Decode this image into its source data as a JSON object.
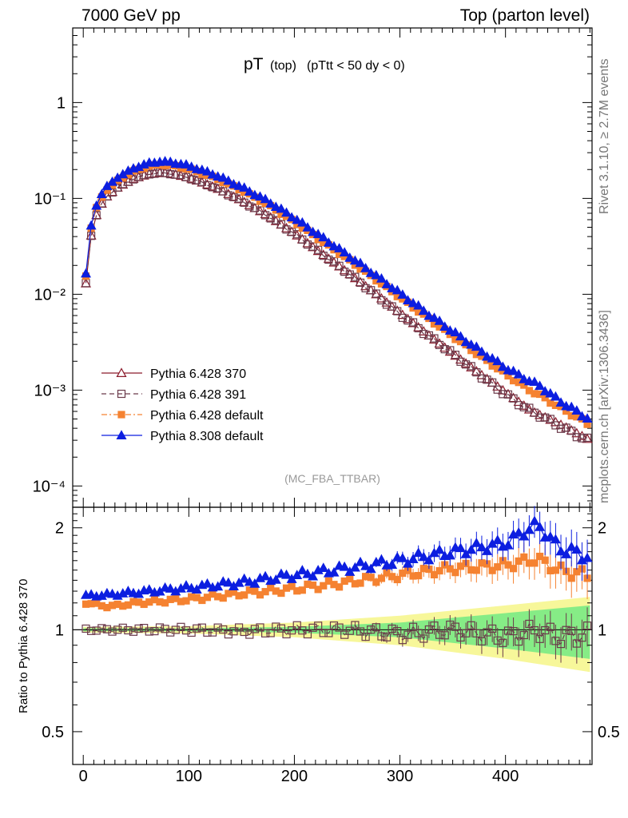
{
  "header": {
    "left": "7000 GeV pp",
    "right": "Top (parton level)"
  },
  "side_labels": {
    "rivet": "Rivet 3.1.10, ≥ 2.7M events",
    "mcplots": "mcplots.cern.ch [arXiv:1306.3436]"
  },
  "chart_data": {
    "type": "scatter",
    "title_main": "pT",
    "title_sub1": "(top)",
    "title_sub2": "(pTtt < 50 dy < 0)",
    "watermark": "(MC_FBA_TTBAR)",
    "ratio_ylabel": "Ratio to Pythia 6.428 370",
    "log_y": true,
    "xlim": [
      -10,
      482
    ],
    "ylim": [
      6e-05,
      6
    ],
    "ratio_ylim": [
      0.4,
      2.3
    ],
    "x_ticks": [
      "0",
      "100",
      "200",
      "300",
      "400"
    ],
    "y_ticks": [
      "10⁻⁴",
      "10⁻³",
      "10⁻²",
      "10⁻¹",
      "1"
    ],
    "ratio_ticks": [
      "0.5",
      "1",
      "2"
    ],
    "legend_position": "lower-left",
    "colors": {
      "p370": "#8b1a2b",
      "p391": "#6b3b4b",
      "p6def": "#f58231",
      "p8def": "#0c1ee0",
      "band_inner": "#86ec86",
      "band_outer": "#f7f79a"
    },
    "series": [
      {
        "name": "Pythia 6.428 370",
        "key": "p370",
        "marker": "triangle-open",
        "line": "solid"
      },
      {
        "name": "Pythia 6.428 391",
        "key": "p391",
        "marker": "square-open",
        "line": "dashed"
      },
      {
        "name": "Pythia 6.428 default",
        "key": "p6def",
        "marker": "square-filled",
        "line": "dashdot"
      },
      {
        "name": "Pythia 8.308 default",
        "key": "p8def",
        "marker": "triangle-filled",
        "line": "solid"
      }
    ],
    "x_start": 2.5,
    "x_step": 5,
    "n_points": 96,
    "reference_shape": {
      "description": "Pythia 6.428 370 values (log-linear interpolation between anchors)",
      "anchors_x": [
        2.5,
        7.5,
        12.5,
        17.5,
        22.5,
        32.5,
        47.5,
        62.5,
        72.5,
        82.5,
        100,
        125,
        150,
        175,
        200,
        225,
        250,
        275,
        300,
        325,
        350,
        375,
        400,
        425,
        450,
        477.5
      ],
      "anchors_y": [
        0.013,
        0.041,
        0.067,
        0.088,
        0.105,
        0.13,
        0.16,
        0.18,
        0.185,
        0.182,
        0.165,
        0.13,
        0.095,
        0.066,
        0.043,
        0.027,
        0.017,
        0.0105,
        0.0064,
        0.0039,
        0.0024,
        0.0015,
        0.00095,
        0.0006,
        0.00045,
        0.00031
      ]
    },
    "ratio_anchors": {
      "x": [
        2.5,
        25,
        50,
        100,
        150,
        200,
        250,
        300,
        350,
        400,
        430,
        450,
        477.5
      ],
      "p391": [
        1.0,
        1.0,
        1.0,
        1.0,
        0.99,
        1.0,
        1.0,
        0.97,
        1.0,
        0.95,
        1.0,
        0.95,
        0.97
      ],
      "p6def": [
        1.2,
        1.17,
        1.2,
        1.23,
        1.28,
        1.32,
        1.38,
        1.45,
        1.52,
        1.55,
        1.62,
        1.5,
        1.45
      ],
      "p8def": [
        1.26,
        1.27,
        1.29,
        1.33,
        1.38,
        1.45,
        1.52,
        1.6,
        1.7,
        1.8,
        2.05,
        1.75,
        1.65
      ]
    },
    "band": {
      "x": [
        0,
        100,
        200,
        300,
        400,
        480
      ],
      "inner": [
        0.01,
        0.01,
        0.02,
        0.05,
        0.12,
        0.18
      ],
      "outer": [
        0.02,
        0.025,
        0.05,
        0.1,
        0.18,
        0.25
      ]
    }
  }
}
